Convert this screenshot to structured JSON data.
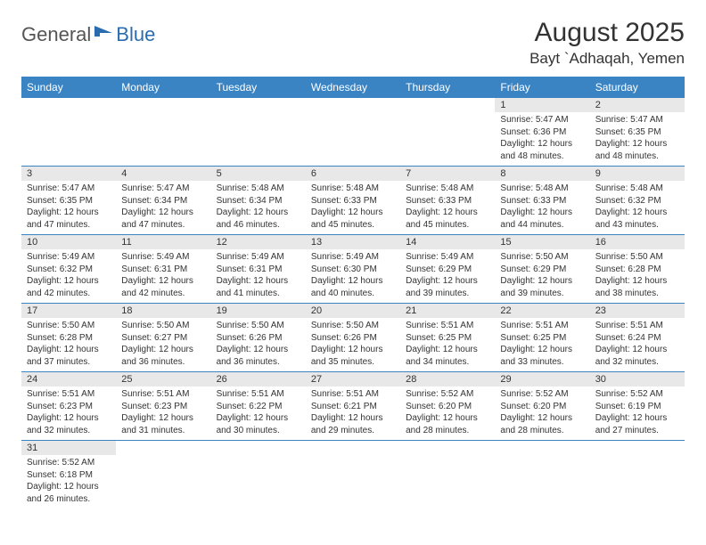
{
  "logo": {
    "text1": "General",
    "text2": "Blue"
  },
  "title": "August 2025",
  "location": "Bayt `Adhaqah, Yemen",
  "header_bg": "#3b84c4",
  "divider_color": "#3b84c4",
  "daynum_bg": "#e8e8e8",
  "weekdays": [
    "Sunday",
    "Monday",
    "Tuesday",
    "Wednesday",
    "Thursday",
    "Friday",
    "Saturday"
  ],
  "weeks": [
    [
      null,
      null,
      null,
      null,
      null,
      {
        "n": "1",
        "sr": "5:47 AM",
        "ss": "6:36 PM",
        "dl": "12 hours and 48 minutes."
      },
      {
        "n": "2",
        "sr": "5:47 AM",
        "ss": "6:35 PM",
        "dl": "12 hours and 48 minutes."
      }
    ],
    [
      {
        "n": "3",
        "sr": "5:47 AM",
        "ss": "6:35 PM",
        "dl": "12 hours and 47 minutes."
      },
      {
        "n": "4",
        "sr": "5:47 AM",
        "ss": "6:34 PM",
        "dl": "12 hours and 47 minutes."
      },
      {
        "n": "5",
        "sr": "5:48 AM",
        "ss": "6:34 PM",
        "dl": "12 hours and 46 minutes."
      },
      {
        "n": "6",
        "sr": "5:48 AM",
        "ss": "6:33 PM",
        "dl": "12 hours and 45 minutes."
      },
      {
        "n": "7",
        "sr": "5:48 AM",
        "ss": "6:33 PM",
        "dl": "12 hours and 45 minutes."
      },
      {
        "n": "8",
        "sr": "5:48 AM",
        "ss": "6:33 PM",
        "dl": "12 hours and 44 minutes."
      },
      {
        "n": "9",
        "sr": "5:48 AM",
        "ss": "6:32 PM",
        "dl": "12 hours and 43 minutes."
      }
    ],
    [
      {
        "n": "10",
        "sr": "5:49 AM",
        "ss": "6:32 PM",
        "dl": "12 hours and 42 minutes."
      },
      {
        "n": "11",
        "sr": "5:49 AM",
        "ss": "6:31 PM",
        "dl": "12 hours and 42 minutes."
      },
      {
        "n": "12",
        "sr": "5:49 AM",
        "ss": "6:31 PM",
        "dl": "12 hours and 41 minutes."
      },
      {
        "n": "13",
        "sr": "5:49 AM",
        "ss": "6:30 PM",
        "dl": "12 hours and 40 minutes."
      },
      {
        "n": "14",
        "sr": "5:49 AM",
        "ss": "6:29 PM",
        "dl": "12 hours and 39 minutes."
      },
      {
        "n": "15",
        "sr": "5:50 AM",
        "ss": "6:29 PM",
        "dl": "12 hours and 39 minutes."
      },
      {
        "n": "16",
        "sr": "5:50 AM",
        "ss": "6:28 PM",
        "dl": "12 hours and 38 minutes."
      }
    ],
    [
      {
        "n": "17",
        "sr": "5:50 AM",
        "ss": "6:28 PM",
        "dl": "12 hours and 37 minutes."
      },
      {
        "n": "18",
        "sr": "5:50 AM",
        "ss": "6:27 PM",
        "dl": "12 hours and 36 minutes."
      },
      {
        "n": "19",
        "sr": "5:50 AM",
        "ss": "6:26 PM",
        "dl": "12 hours and 36 minutes."
      },
      {
        "n": "20",
        "sr": "5:50 AM",
        "ss": "6:26 PM",
        "dl": "12 hours and 35 minutes."
      },
      {
        "n": "21",
        "sr": "5:51 AM",
        "ss": "6:25 PM",
        "dl": "12 hours and 34 minutes."
      },
      {
        "n": "22",
        "sr": "5:51 AM",
        "ss": "6:25 PM",
        "dl": "12 hours and 33 minutes."
      },
      {
        "n": "23",
        "sr": "5:51 AM",
        "ss": "6:24 PM",
        "dl": "12 hours and 32 minutes."
      }
    ],
    [
      {
        "n": "24",
        "sr": "5:51 AM",
        "ss": "6:23 PM",
        "dl": "12 hours and 32 minutes."
      },
      {
        "n": "25",
        "sr": "5:51 AM",
        "ss": "6:23 PM",
        "dl": "12 hours and 31 minutes."
      },
      {
        "n": "26",
        "sr": "5:51 AM",
        "ss": "6:22 PM",
        "dl": "12 hours and 30 minutes."
      },
      {
        "n": "27",
        "sr": "5:51 AM",
        "ss": "6:21 PM",
        "dl": "12 hours and 29 minutes."
      },
      {
        "n": "28",
        "sr": "5:52 AM",
        "ss": "6:20 PM",
        "dl": "12 hours and 28 minutes."
      },
      {
        "n": "29",
        "sr": "5:52 AM",
        "ss": "6:20 PM",
        "dl": "12 hours and 28 minutes."
      },
      {
        "n": "30",
        "sr": "5:52 AM",
        "ss": "6:19 PM",
        "dl": "12 hours and 27 minutes."
      }
    ],
    [
      {
        "n": "31",
        "sr": "5:52 AM",
        "ss": "6:18 PM",
        "dl": "12 hours and 26 minutes."
      },
      null,
      null,
      null,
      null,
      null,
      null
    ]
  ],
  "labels": {
    "sunrise": "Sunrise: ",
    "sunset": "Sunset: ",
    "daylight": "Daylight: "
  }
}
